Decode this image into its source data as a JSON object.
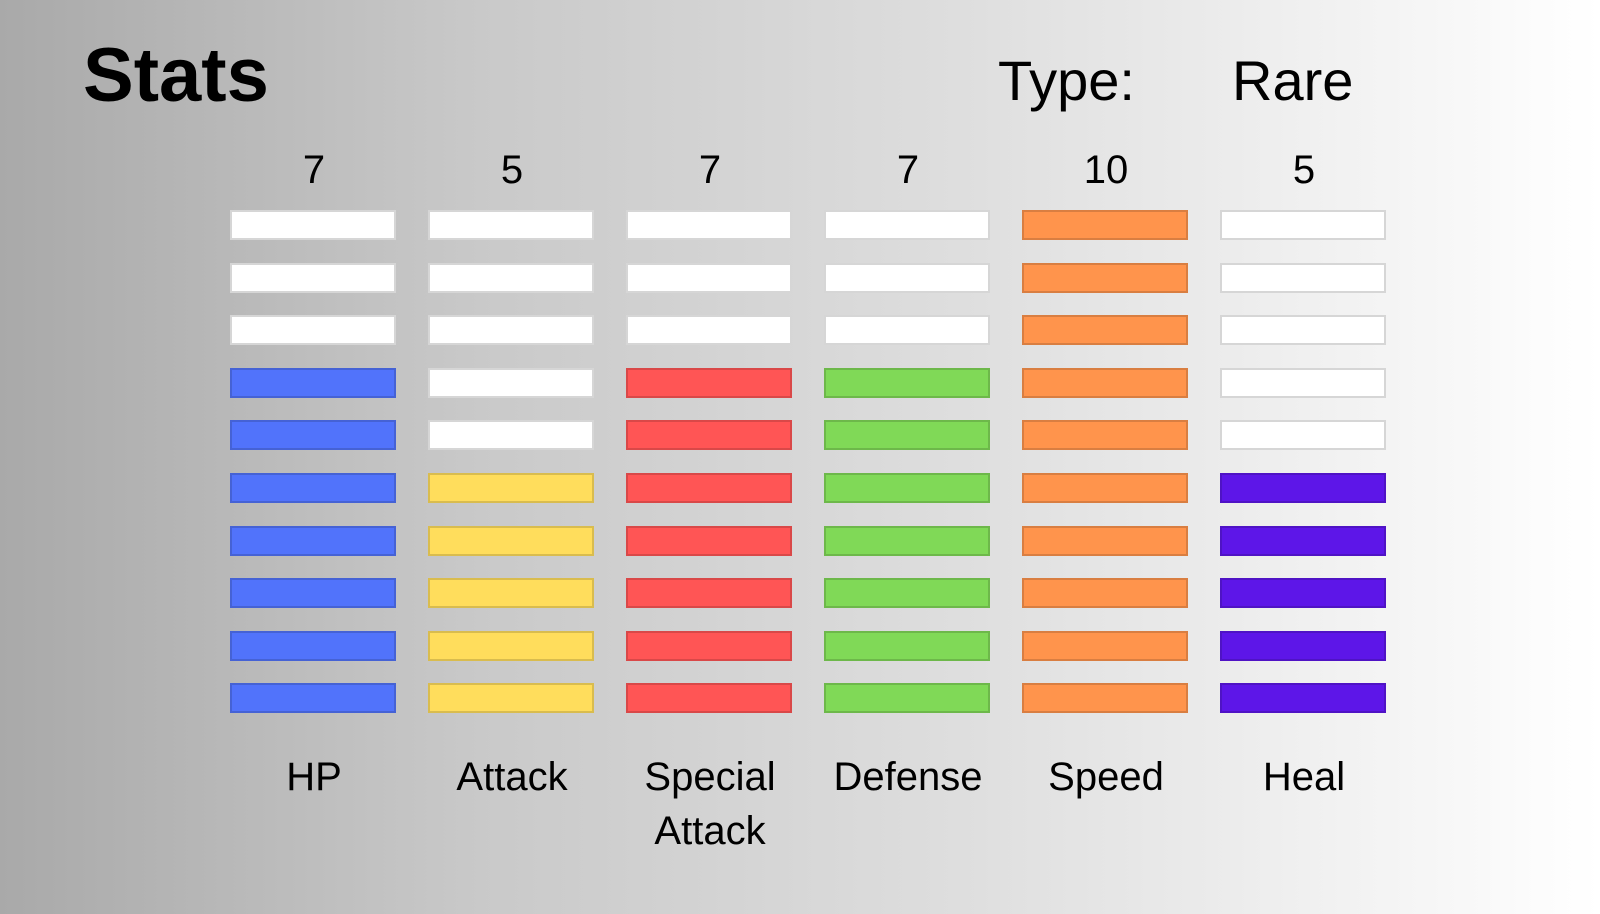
{
  "title": "Stats",
  "type_label": "Type:",
  "type_value": "Rare",
  "chart_data": {
    "type": "bar",
    "title": "Stats",
    "max_segments": 10,
    "categories": [
      "HP",
      "Attack",
      "Special Attack",
      "Defense",
      "Speed",
      "Heal"
    ],
    "values": [
      7,
      5,
      7,
      7,
      10,
      5
    ],
    "value_labels": [
      "7",
      "5",
      "7",
      "7",
      "10",
      "5"
    ],
    "labels_display": [
      [
        "HP"
      ],
      [
        "Attack"
      ],
      [
        "Special",
        "Attack"
      ],
      [
        "Defense"
      ],
      [
        "Speed"
      ],
      [
        "Heal"
      ]
    ],
    "colors": [
      "#5173fb",
      "#ffdd5c",
      "#ff5555",
      "#80d957",
      "#ff944c",
      "#5d16e8"
    ],
    "empty_color": "#ffffff"
  }
}
